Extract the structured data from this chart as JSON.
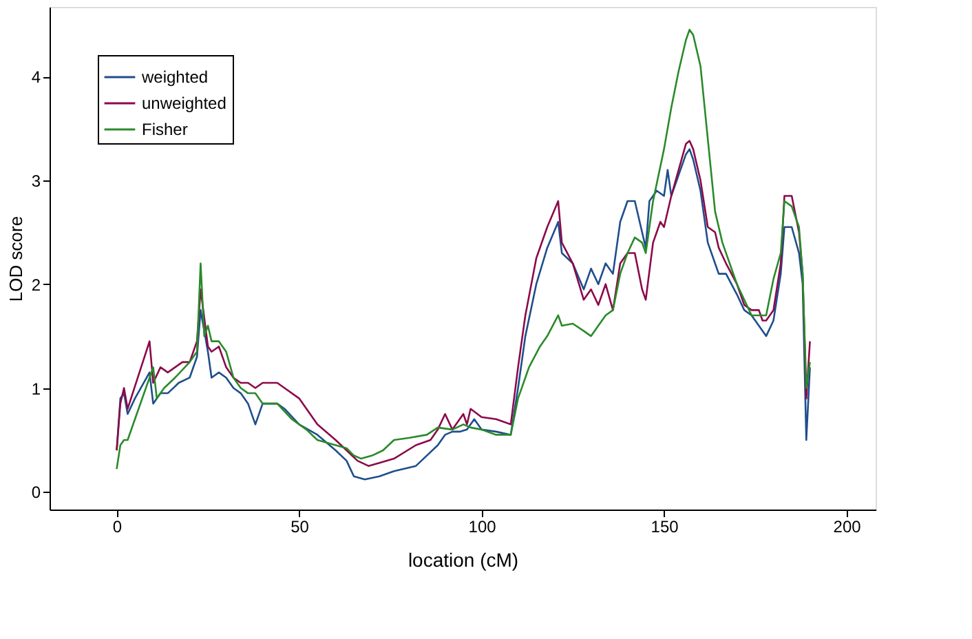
{
  "chart_data": {
    "type": "line",
    "xlabel": "location (cM)",
    "ylabel": "LOD score",
    "xlim": [
      -18.4,
      208
    ],
    "ylim": [
      -0.17,
      4.67
    ],
    "xticks": [
      0,
      50,
      100,
      150,
      200
    ],
    "yticks": [
      0,
      1,
      2,
      3,
      4
    ],
    "grid": false,
    "legend": "top left",
    "line_style": "solid",
    "marker": "none",
    "series": [
      {
        "name": "weighted",
        "color": "#1f4e8c",
        "x": [
          0,
          1,
          2,
          3,
          5,
          9,
          10,
          12,
          14,
          17,
          20,
          22,
          23,
          25,
          26,
          28,
          30,
          32,
          34,
          36,
          38,
          40,
          44,
          46,
          50,
          55,
          60,
          63,
          65,
          68,
          72,
          76,
          82,
          85,
          88,
          90,
          92,
          94,
          96,
          98,
          100,
          104,
          108,
          110,
          112,
          115,
          118,
          121,
          122,
          125,
          128,
          130,
          132,
          134,
          136,
          138,
          140,
          142,
          144,
          145,
          146,
          148,
          150,
          151,
          152,
          154,
          156,
          157,
          158,
          160,
          162,
          164,
          165,
          167,
          170,
          172,
          174,
          176,
          177,
          178,
          180,
          182,
          183,
          185,
          187,
          188,
          189,
          190
        ],
        "values": [
          0.4,
          0.9,
          0.95,
          0.75,
          0.9,
          1.15,
          0.85,
          0.95,
          0.95,
          1.05,
          1.1,
          1.3,
          1.75,
          1.35,
          1.1,
          1.15,
          1.1,
          1.0,
          0.95,
          0.85,
          0.65,
          0.85,
          0.85,
          0.8,
          0.65,
          0.55,
          0.4,
          0.3,
          0.15,
          0.12,
          0.15,
          0.2,
          0.25,
          0.35,
          0.45,
          0.55,
          0.58,
          0.58,
          0.6,
          0.7,
          0.6,
          0.58,
          0.55,
          1.0,
          1.5,
          2.0,
          2.35,
          2.6,
          2.3,
          2.2,
          1.95,
          2.15,
          2.0,
          2.2,
          2.1,
          2.6,
          2.8,
          2.8,
          2.5,
          2.35,
          2.8,
          2.9,
          2.85,
          3.1,
          2.85,
          3.05,
          3.25,
          3.3,
          3.2,
          2.9,
          2.4,
          2.2,
          2.1,
          2.1,
          1.9,
          1.75,
          1.7,
          1.6,
          1.55,
          1.5,
          1.65,
          2.1,
          2.55,
          2.55,
          2.3,
          2.0,
          0.5,
          1.2
        ]
      },
      {
        "name": "unweighted",
        "color": "#8b0a4a",
        "x": [
          0,
          1,
          2,
          3,
          9,
          10,
          12,
          14,
          16,
          18,
          20,
          22,
          23,
          25,
          26,
          28,
          30,
          32,
          34,
          36,
          38,
          40,
          44,
          46,
          50,
          55,
          60,
          63,
          66,
          69,
          72,
          76,
          82,
          86,
          88,
          90,
          92,
          95,
          96,
          97,
          100,
          104,
          108,
          110,
          112,
          115,
          118,
          121,
          122,
          125,
          128,
          130,
          132,
          134,
          136,
          138,
          140,
          142,
          144,
          145,
          147,
          149,
          150,
          152,
          154,
          156,
          157,
          158,
          160,
          162,
          164,
          165,
          167,
          170,
          172,
          174,
          176,
          177,
          178,
          180,
          182,
          183,
          185,
          187,
          188,
          189,
          190
        ],
        "values": [
          0.4,
          0.85,
          1.0,
          0.8,
          1.45,
          1.05,
          1.2,
          1.15,
          1.2,
          1.25,
          1.25,
          1.45,
          1.95,
          1.4,
          1.35,
          1.4,
          1.2,
          1.1,
          1.05,
          1.05,
          1.0,
          1.05,
          1.05,
          1.0,
          0.9,
          0.65,
          0.5,
          0.4,
          0.3,
          0.25,
          0.28,
          0.32,
          0.45,
          0.5,
          0.6,
          0.75,
          0.6,
          0.75,
          0.65,
          0.8,
          0.72,
          0.7,
          0.65,
          1.2,
          1.7,
          2.25,
          2.55,
          2.8,
          2.4,
          2.2,
          1.85,
          1.95,
          1.8,
          2.0,
          1.75,
          2.2,
          2.3,
          2.3,
          1.95,
          1.85,
          2.4,
          2.6,
          2.55,
          2.85,
          3.1,
          3.35,
          3.38,
          3.3,
          3.0,
          2.55,
          2.5,
          2.35,
          2.2,
          2.0,
          1.8,
          1.75,
          1.75,
          1.65,
          1.65,
          1.75,
          2.2,
          2.85,
          2.85,
          2.5,
          2.1,
          0.9,
          1.45
        ]
      },
      {
        "name": "Fisher",
        "color": "#2a8a2a",
        "x": [
          0,
          1,
          2,
          3,
          5,
          10,
          11,
          13,
          16,
          20,
          22,
          23,
          24,
          25,
          26,
          28,
          30,
          32,
          34,
          36,
          38,
          40,
          44,
          48,
          52,
          55,
          60,
          63,
          65,
          67,
          70,
          73,
          76,
          80,
          85,
          88,
          92,
          95,
          97,
          100,
          104,
          108,
          110,
          113,
          116,
          118,
          121,
          122,
          125,
          128,
          130,
          132,
          134,
          136,
          138,
          140,
          142,
          144,
          145,
          147,
          150,
          152,
          154,
          156,
          157,
          158,
          160,
          162,
          164,
          166,
          170,
          174,
          176,
          178,
          180,
          182,
          183,
          185,
          187,
          188,
          189,
          190
        ],
        "values": [
          0.22,
          0.45,
          0.5,
          0.5,
          0.7,
          1.2,
          0.9,
          1.0,
          1.1,
          1.25,
          1.35,
          2.2,
          1.5,
          1.6,
          1.45,
          1.45,
          1.35,
          1.1,
          1.0,
          0.95,
          0.95,
          0.85,
          0.85,
          0.7,
          0.6,
          0.5,
          0.45,
          0.42,
          0.35,
          0.32,
          0.35,
          0.4,
          0.5,
          0.52,
          0.55,
          0.62,
          0.6,
          0.65,
          0.62,
          0.6,
          0.55,
          0.55,
          0.9,
          1.2,
          1.4,
          1.5,
          1.7,
          1.6,
          1.62,
          1.55,
          1.5,
          1.6,
          1.7,
          1.75,
          2.1,
          2.3,
          2.45,
          2.4,
          2.3,
          2.8,
          3.3,
          3.7,
          4.05,
          4.35,
          4.45,
          4.4,
          4.1,
          3.4,
          2.7,
          2.4,
          2.0,
          1.7,
          1.7,
          1.7,
          2.05,
          2.3,
          2.8,
          2.75,
          2.55,
          2.1,
          1.0,
          1.25
        ]
      }
    ]
  }
}
